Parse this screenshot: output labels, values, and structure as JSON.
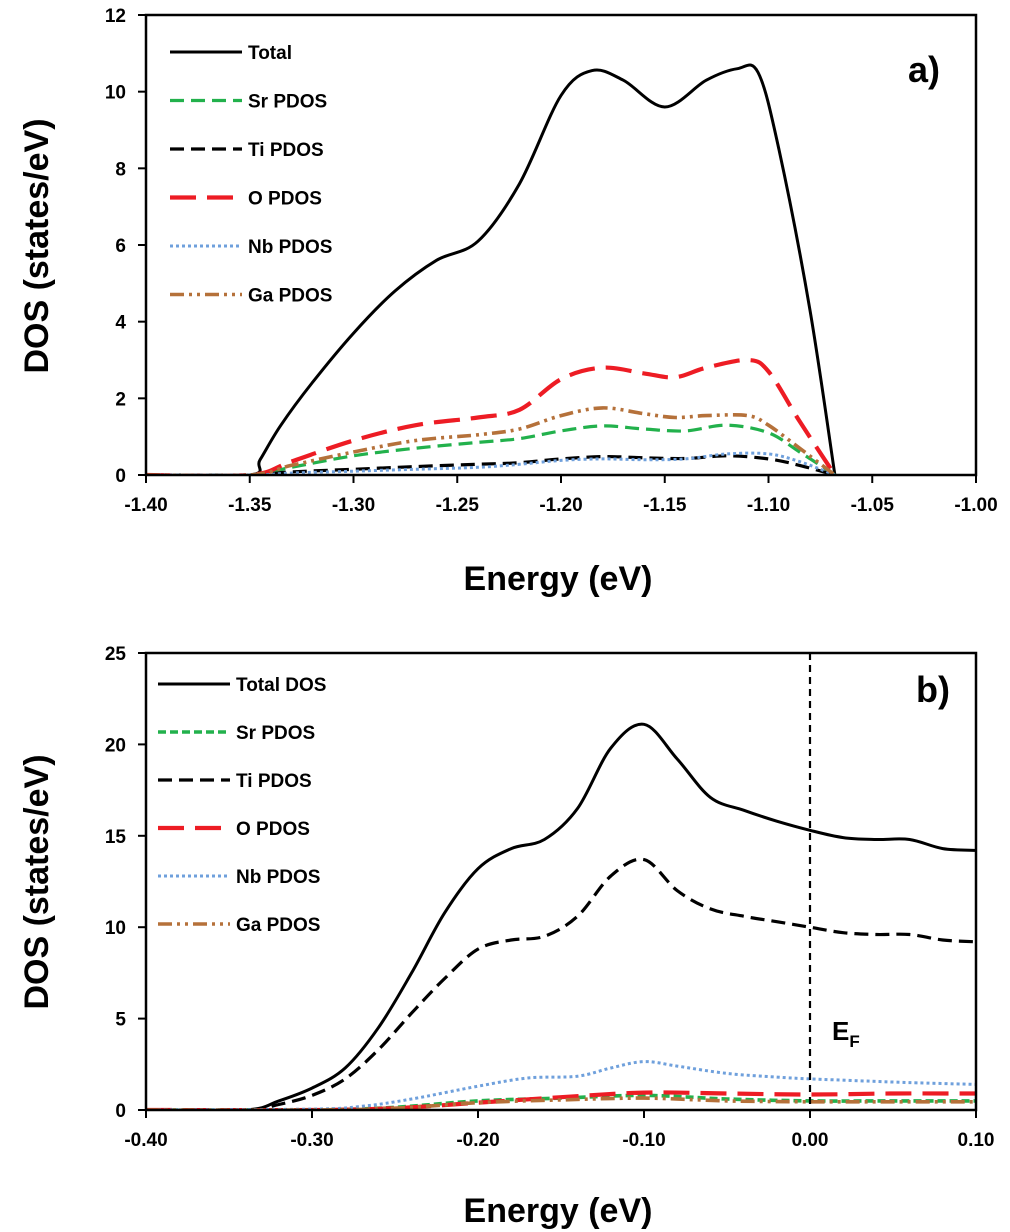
{
  "chart_data": [
    {
      "type": "line",
      "panel_label": "a)",
      "xlabel": "Energy (eV)",
      "ylabel": "DOS (states/eV)",
      "xlim": [
        -1.4,
        -1.0
      ],
      "ylim": [
        0,
        12
      ],
      "xticks": [
        "-1.40",
        "-1.35",
        "-1.30",
        "-1.25",
        "-1.20",
        "-1.15",
        "-1.10",
        "-1.05",
        "-1.00"
      ],
      "yticks": [
        "0",
        "2",
        "4",
        "6",
        "8",
        "10",
        "12"
      ],
      "grid": false,
      "legend_position": "top-left",
      "series": [
        {
          "name": "Total",
          "color": "#000000",
          "style": "solid",
          "x": [
            -1.4,
            -1.35,
            -1.345,
            -1.335,
            -1.32,
            -1.3,
            -1.28,
            -1.26,
            -1.24,
            -1.22,
            -1.2,
            -1.185,
            -1.17,
            -1.15,
            -1.13,
            -1.115,
            -1.105,
            -1.095,
            -1.08,
            -1.068
          ],
          "y": [
            0,
            0,
            0.4,
            1.3,
            2.4,
            3.7,
            4.8,
            5.6,
            6.1,
            7.6,
            9.9,
            10.55,
            10.3,
            9.6,
            10.3,
            10.6,
            10.5,
            8.5,
            4.3,
            0
          ]
        },
        {
          "name": "Sr PDOS",
          "color": "#22b14c",
          "style": "dash",
          "x": [
            -1.4,
            -1.35,
            -1.33,
            -1.3,
            -1.27,
            -1.24,
            -1.22,
            -1.2,
            -1.18,
            -1.16,
            -1.14,
            -1.12,
            -1.1,
            -1.085,
            -1.068
          ],
          "y": [
            0,
            0,
            0.2,
            0.5,
            0.7,
            0.85,
            0.95,
            1.15,
            1.28,
            1.2,
            1.15,
            1.3,
            1.1,
            0.6,
            0
          ]
        },
        {
          "name": "Ti PDOS",
          "color": "#000000",
          "style": "dash",
          "x": [
            -1.4,
            -1.35,
            -1.33,
            -1.3,
            -1.27,
            -1.24,
            -1.22,
            -1.2,
            -1.18,
            -1.16,
            -1.14,
            -1.12,
            -1.1,
            -1.085,
            -1.068
          ],
          "y": [
            0,
            0,
            0.08,
            0.15,
            0.22,
            0.28,
            0.32,
            0.42,
            0.48,
            0.45,
            0.43,
            0.5,
            0.42,
            0.25,
            0
          ]
        },
        {
          "name": "O PDOS",
          "color": "#ed1c24",
          "style": "longdash",
          "x": [
            -1.4,
            -1.35,
            -1.33,
            -1.3,
            -1.27,
            -1.24,
            -1.22,
            -1.2,
            -1.18,
            -1.16,
            -1.145,
            -1.13,
            -1.11,
            -1.1,
            -1.085,
            -1.068
          ],
          "y": [
            0,
            0,
            0.35,
            0.9,
            1.3,
            1.5,
            1.7,
            2.5,
            2.8,
            2.65,
            2.55,
            2.8,
            3.0,
            2.7,
            1.4,
            0
          ]
        },
        {
          "name": "Nb PDOS",
          "color": "#6fa0dc",
          "style": "dot",
          "x": [
            -1.4,
            -1.35,
            -1.33,
            -1.3,
            -1.27,
            -1.24,
            -1.22,
            -1.2,
            -1.18,
            -1.16,
            -1.14,
            -1.12,
            -1.1,
            -1.085,
            -1.068
          ],
          "y": [
            0,
            0,
            0.05,
            0.1,
            0.15,
            0.2,
            0.28,
            0.38,
            0.42,
            0.4,
            0.42,
            0.55,
            0.55,
            0.35,
            0
          ]
        },
        {
          "name": "Ga PDOS",
          "color": "#b5713a",
          "style": "dashdotdot",
          "x": [
            -1.4,
            -1.35,
            -1.33,
            -1.3,
            -1.27,
            -1.24,
            -1.22,
            -1.2,
            -1.18,
            -1.16,
            -1.145,
            -1.13,
            -1.11,
            -1.1,
            -1.085,
            -1.068
          ],
          "y": [
            0,
            0,
            0.25,
            0.6,
            0.9,
            1.05,
            1.2,
            1.55,
            1.75,
            1.6,
            1.5,
            1.55,
            1.55,
            1.3,
            0.7,
            0
          ]
        }
      ]
    },
    {
      "type": "line",
      "panel_label": "b)",
      "xlabel": "Energy (eV)",
      "ylabel": "DOS (states/eV)",
      "xlim": [
        -0.4,
        0.1
      ],
      "ylim": [
        0,
        25
      ],
      "xticks": [
        "-0.40",
        "-0.30",
        "-0.20",
        "-0.10",
        "0.00",
        "0.10"
      ],
      "yticks": [
        "0",
        "5",
        "10",
        "15",
        "20",
        "25"
      ],
      "grid": false,
      "legend_position": "top-left",
      "fermi_level": {
        "x": 0.0,
        "label": "E",
        "subscript": "F"
      },
      "series": [
        {
          "name": "Total DOS",
          "color": "#000000",
          "style": "solid",
          "x": [
            -0.4,
            -0.34,
            -0.32,
            -0.3,
            -0.28,
            -0.26,
            -0.24,
            -0.22,
            -0.2,
            -0.18,
            -0.16,
            -0.14,
            -0.12,
            -0.1,
            -0.08,
            -0.06,
            -0.04,
            -0.02,
            0.0,
            0.02,
            0.04,
            0.06,
            0.08,
            0.1
          ],
          "y": [
            0,
            0,
            0.5,
            1.2,
            2.3,
            4.5,
            7.5,
            10.8,
            13.2,
            14.3,
            14.8,
            16.5,
            19.8,
            21.1,
            19.2,
            17.1,
            16.4,
            15.8,
            15.3,
            14.9,
            14.8,
            14.8,
            14.3,
            14.2
          ]
        },
        {
          "name": "Sr PDOS",
          "color": "#22b14c",
          "style": "shortdash",
          "x": [
            -0.4,
            -0.3,
            -0.25,
            -0.2,
            -0.15,
            -0.1,
            -0.05,
            0.0,
            0.05,
            0.1
          ],
          "y": [
            0,
            0,
            0.15,
            0.5,
            0.65,
            0.8,
            0.6,
            0.5,
            0.5,
            0.5
          ]
        },
        {
          "name": "Ti PDOS",
          "color": "#000000",
          "style": "dash",
          "x": [
            -0.4,
            -0.34,
            -0.32,
            -0.3,
            -0.28,
            -0.26,
            -0.24,
            -0.22,
            -0.2,
            -0.18,
            -0.16,
            -0.14,
            -0.12,
            -0.1,
            -0.08,
            -0.06,
            -0.04,
            -0.02,
            0.0,
            0.02,
            0.04,
            0.06,
            0.08,
            0.1
          ],
          "y": [
            0,
            0,
            0.3,
            0.8,
            1.7,
            3.3,
            5.3,
            7.2,
            8.8,
            9.3,
            9.5,
            10.6,
            12.8,
            13.7,
            12.0,
            11.0,
            10.6,
            10.3,
            10.0,
            9.7,
            9.6,
            9.6,
            9.3,
            9.2
          ]
        },
        {
          "name": "O PDOS",
          "color": "#ed1c24",
          "style": "longdash",
          "x": [
            -0.4,
            -0.3,
            -0.25,
            -0.2,
            -0.15,
            -0.1,
            -0.05,
            0.0,
            0.05,
            0.1
          ],
          "y": [
            0,
            0,
            0.1,
            0.4,
            0.7,
            0.95,
            0.9,
            0.85,
            0.9,
            0.9
          ]
        },
        {
          "name": "Nb PDOS",
          "color": "#6fa0dc",
          "style": "dot",
          "x": [
            -0.4,
            -0.3,
            -0.27,
            -0.24,
            -0.2,
            -0.17,
            -0.14,
            -0.12,
            -0.1,
            -0.08,
            -0.05,
            -0.02,
            0.0,
            0.03,
            0.06,
            0.1
          ],
          "y": [
            0,
            0.05,
            0.2,
            0.6,
            1.3,
            1.75,
            1.85,
            2.3,
            2.65,
            2.4,
            2.0,
            1.8,
            1.7,
            1.6,
            1.5,
            1.4
          ]
        },
        {
          "name": "Ga PDOS",
          "color": "#b5713a",
          "style": "dashdotdot",
          "x": [
            -0.4,
            -0.3,
            -0.25,
            -0.2,
            -0.15,
            -0.1,
            -0.05,
            0.0,
            0.05,
            0.1
          ],
          "y": [
            0,
            0,
            0.1,
            0.4,
            0.55,
            0.65,
            0.5,
            0.45,
            0.45,
            0.45
          ]
        }
      ]
    }
  ]
}
